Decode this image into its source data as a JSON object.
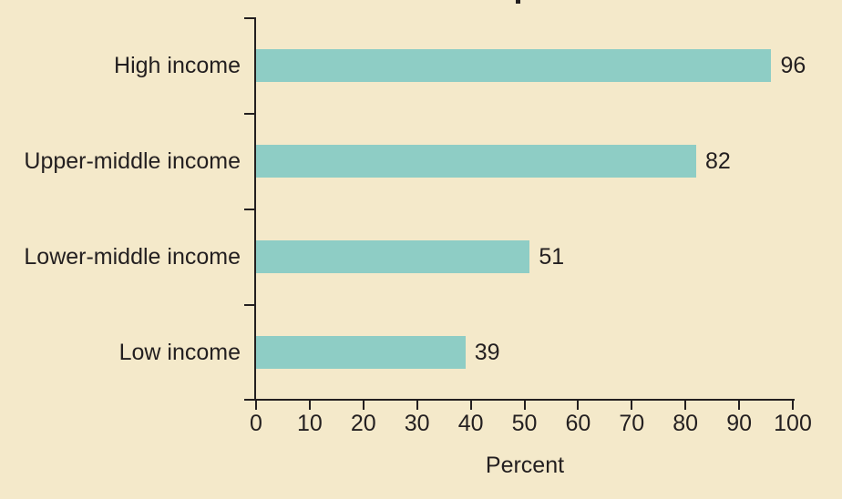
{
  "chart_data": {
    "type": "bar",
    "orientation": "horizontal",
    "categories": [
      "High income",
      "Upper-middle income",
      "Lower-middle income",
      "Low income"
    ],
    "values": [
      96,
      82,
      51,
      39
    ],
    "value_labels": [
      "96",
      "82",
      "51",
      "39"
    ],
    "xlabel": "Percent",
    "xlim": [
      0,
      100
    ],
    "xticks": [
      0,
      10,
      20,
      30,
      40,
      50,
      60,
      70,
      80,
      90,
      100
    ],
    "grid": "off",
    "legend": "none",
    "colors": {
      "bar": "#8ecdc5",
      "background": "#f4e9ca",
      "axis": "#231f20",
      "text": "#231f20"
    }
  }
}
